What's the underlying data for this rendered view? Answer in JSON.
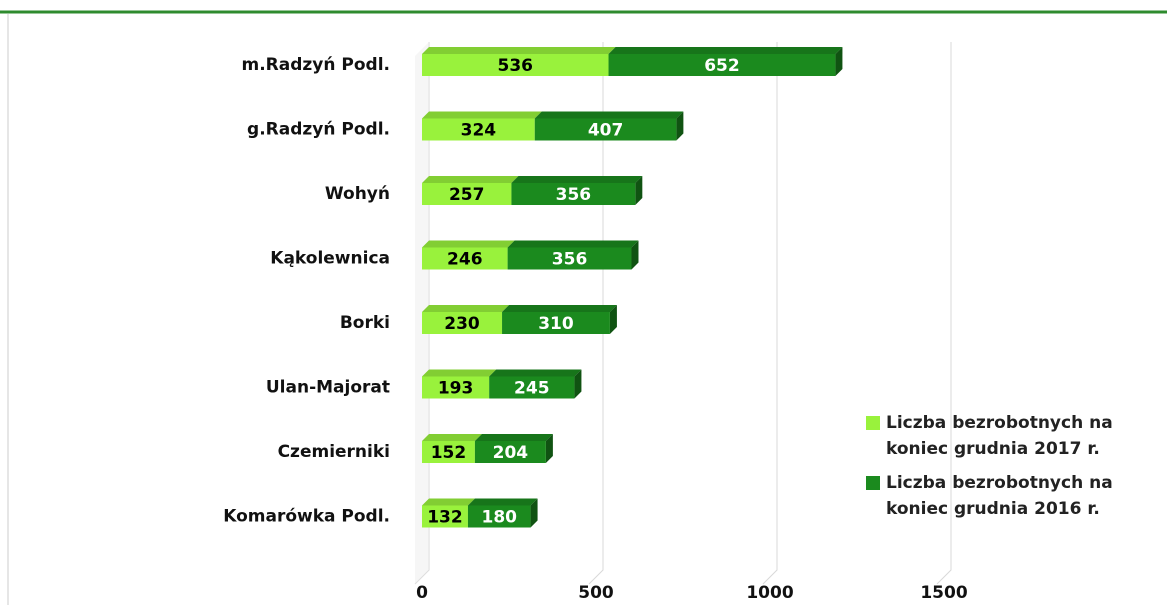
{
  "chart_data": {
    "type": "bar",
    "orientation": "horizontal",
    "stacked": true,
    "categories": [
      "m.Radzyń Podl.",
      "g.Radzyń Podl.",
      "Wohyń",
      "Kąkolewnica",
      "Borki",
      "Ulan-Majorat",
      "Czemierniki",
      "Komarówka Podl."
    ],
    "series": [
      {
        "name": "Liczba bezrobotnych na koniec grudnia 2017 r.",
        "color": "#99f23c",
        "values": [
          536,
          324,
          257,
          246,
          230,
          193,
          152,
          132
        ]
      },
      {
        "name": "Liczba bezrobotnych na koniec grudnia 2016 r.",
        "color": "#1b8a1e",
        "values": [
          652,
          407,
          356,
          356,
          310,
          245,
          204,
          180
        ]
      }
    ],
    "xlim": [
      0,
      1500
    ],
    "xticks": [
      0,
      500,
      1000,
      1500
    ],
    "grid": true,
    "legend": "right"
  }
}
